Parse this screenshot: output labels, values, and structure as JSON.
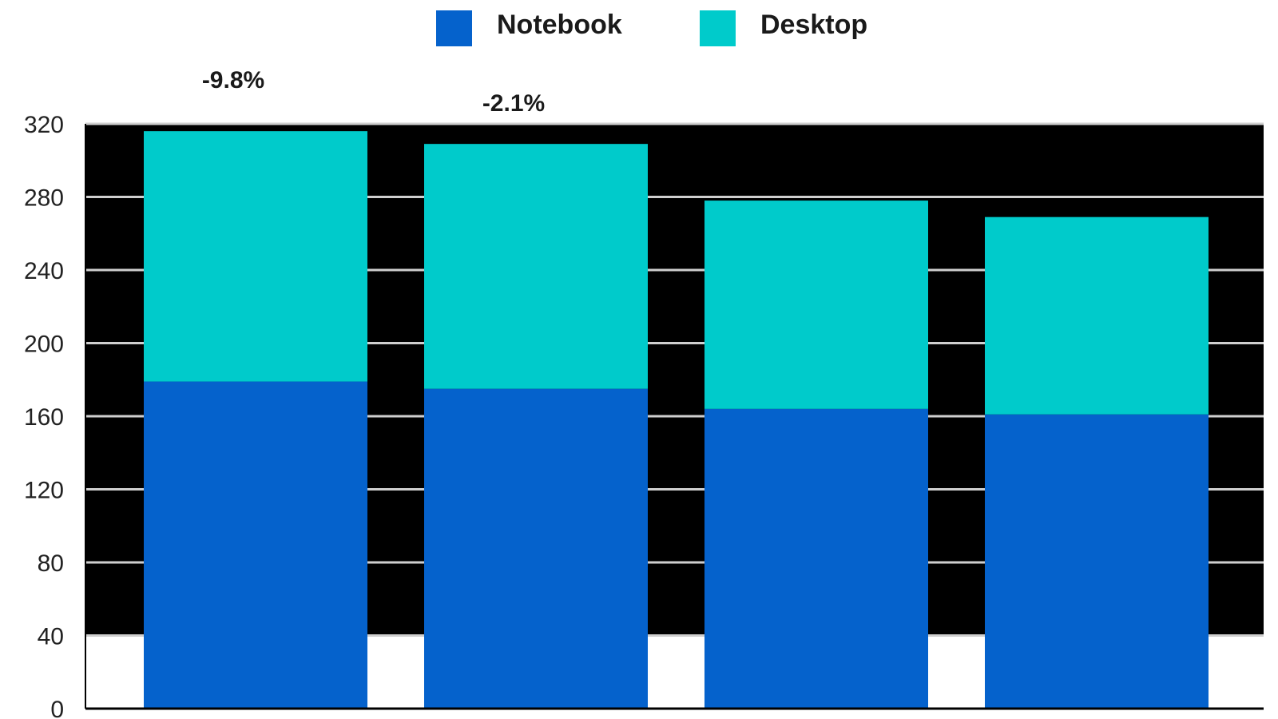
{
  "chart_data": {
    "type": "bar",
    "stacked": true,
    "categories": [
      "",
      "",
      "",
      ""
    ],
    "series": [
      {
        "name": "Notebook",
        "values": [
          179,
          175,
          164,
          161
        ],
        "color": "#0562CC"
      },
      {
        "name": "Desktop",
        "values": [
          137,
          134,
          114,
          108
        ],
        "color": "#00CBCB"
      }
    ],
    "annotations": [
      {
        "category_index": 0,
        "text": "-9.8%"
      },
      {
        "category_index": 1,
        "text": "-2.1%"
      }
    ],
    "yticks": [
      "0",
      "40",
      "80",
      "120",
      "160",
      "200",
      "240",
      "280",
      "320"
    ],
    "ylim": [
      0,
      320
    ],
    "title": "",
    "xlabel": "",
    "ylabel": "",
    "grid": true,
    "legend_position": "top-center",
    "plot_background": "#000000",
    "gridline_color": "#cfcfcf"
  }
}
